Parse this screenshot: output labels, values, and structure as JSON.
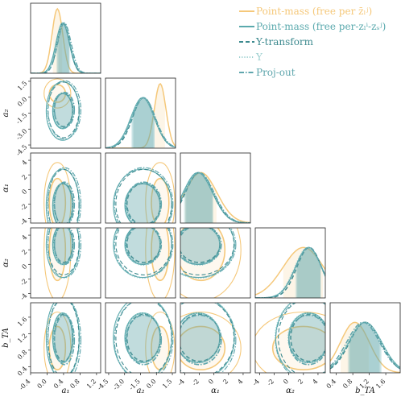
{
  "chart_data": {
    "type": "corner",
    "parameters": [
      "a_1",
      "a_2",
      "α_1",
      "α_2",
      "b_TA"
    ],
    "axis_labels": {
      "x": [
        "a₁",
        "a₂",
        "α₁",
        "α₂",
        "b_TA"
      ],
      "y": [
        "a₂",
        "α₁",
        "α₂",
        "b_TA"
      ]
    },
    "ranges": [
      [
        -0.4,
        1.3
      ],
      [
        -4.8,
        1.8
      ],
      [
        -4.6,
        5.0
      ],
      [
        -4.6,
        5.0
      ],
      [
        0.25,
        1.95
      ]
    ],
    "ticks": [
      [
        "-0.4",
        "0.0",
        "0.4",
        "0.8",
        "1.2"
      ],
      [
        "-4.5",
        "-3.0",
        "-1.5",
        "0.0",
        "1.5"
      ],
      [
        "-4",
        "-2",
        "0",
        "2",
        "4"
      ],
      [
        "-4",
        "-2",
        "0",
        "2",
        "4"
      ],
      [
        "0.4",
        "0.8",
        "1.2",
        "1.6"
      ]
    ],
    "tick_values": [
      [
        -0.4,
        0.0,
        0.4,
        0.8,
        1.2
      ],
      [
        -4.5,
        -3.0,
        -1.5,
        0.0,
        1.5
      ],
      [
        -4,
        -2,
        0,
        2,
        4
      ],
      [
        -4,
        -2,
        0,
        2,
        4
      ],
      [
        0.4,
        0.8,
        1.2,
        1.6
      ]
    ],
    "series": [
      {
        "name": "Point-mass (free per $\\bar{z}_l^j$)",
        "color": "#f5c87a",
        "style": "solid",
        "means": [
          0.25,
          0.35,
          -1.8,
          2.0,
          0.85
        ],
        "sigmas": [
          0.13,
          0.55,
          2.2,
          2.8,
          0.35
        ]
      },
      {
        "name": "Point-mass (free per-$z_l^i$-$z_s^j$)",
        "color": "#5aa9ad",
        "style": "solid",
        "means": [
          0.38,
          -1.3,
          -2.2,
          2.7,
          1.1
        ],
        "sigmas": [
          0.16,
          1.1,
          2.0,
          1.8,
          0.4
        ]
      },
      {
        "name": "Y-transform",
        "color": "#3d8a8f",
        "style": "dashed",
        "means": [
          0.4,
          -1.2,
          -2.0,
          2.8,
          1.1
        ],
        "sigmas": [
          0.15,
          1.05,
          1.9,
          1.7,
          0.38
        ]
      },
      {
        "name": "Υ",
        "color": "#9bcfcf",
        "style": "dotted",
        "means": [
          0.4,
          -1.25,
          -2.1,
          2.6,
          1.1
        ],
        "sigmas": [
          0.16,
          1.1,
          2.0,
          1.8,
          0.4
        ]
      },
      {
        "name": "Proj-out",
        "color": "#5fa6ad",
        "style": "dashdot",
        "means": [
          0.42,
          -1.2,
          -2.0,
          2.7,
          1.05
        ],
        "sigmas": [
          0.16,
          1.1,
          2.0,
          1.8,
          0.4
        ]
      }
    ]
  },
  "legend": {
    "items": [
      {
        "label": "Point-mass (free per z̄ₗʲ)",
        "color": "#f5c87a",
        "style": "solid"
      },
      {
        "label": "Point-mass (free per-zₗⁱ-zₛʲ)",
        "color": "#5aa9ad",
        "style": "solid"
      },
      {
        "label": "Y-transform",
        "color": "#3d8a8f",
        "style": "dashed"
      },
      {
        "label": "Υ",
        "color": "#9bcfcf",
        "style": "dotted"
      },
      {
        "label": "Proj-out",
        "color": "#5fa6ad",
        "style": "dashdot"
      }
    ]
  }
}
